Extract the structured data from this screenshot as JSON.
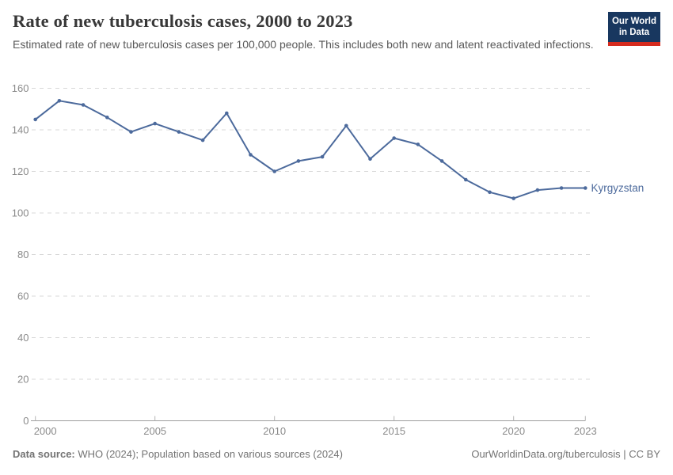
{
  "header": {
    "title": "Rate of new tuberculosis cases, 2000 to 2023",
    "subtitle": "Estimated rate of new tuberculosis cases per 100,000 people. This includes both new and latent reactivated infections.",
    "logo": {
      "line1": "Our World",
      "line2": "in Data",
      "bg_color": "#18375f",
      "accent_color": "#d52b1e"
    }
  },
  "chart_data": {
    "type": "line",
    "title": "Rate of new tuberculosis cases, 2000 to 2023",
    "xlabel": "",
    "ylabel": "",
    "x": [
      2000,
      2001,
      2002,
      2003,
      2004,
      2005,
      2006,
      2007,
      2008,
      2009,
      2010,
      2011,
      2012,
      2013,
      2014,
      2015,
      2016,
      2017,
      2018,
      2019,
      2020,
      2021,
      2022,
      2023
    ],
    "series": [
      {
        "name": "Kyrgyzstan",
        "color": "#4c6a9c",
        "values": [
          145,
          154,
          152,
          146,
          139,
          143,
          139,
          135,
          148,
          128,
          120,
          125,
          127,
          142,
          126,
          136,
          133,
          125,
          116,
          110,
          107,
          111,
          112,
          112
        ]
      }
    ],
    "xticks": [
      2000,
      2005,
      2010,
      2015,
      2020,
      2023
    ],
    "yticks": [
      0,
      20,
      40,
      60,
      80,
      100,
      120,
      140,
      160
    ],
    "xlim": [
      2000,
      2023
    ],
    "ylim": [
      0,
      160
    ],
    "grid": "horizontal-dashed",
    "grid_color": "#d8d8d8",
    "axis_color": "#9e9e9e",
    "tick_label_color": "#8a8a8a",
    "legend_position": "end-of-line"
  },
  "footer": {
    "datasource_label": "Data source:",
    "datasource_text": " WHO (2024); Population based on various sources (2024)",
    "link_text": "OurWorldinData.org/tuberculosis | CC BY"
  }
}
